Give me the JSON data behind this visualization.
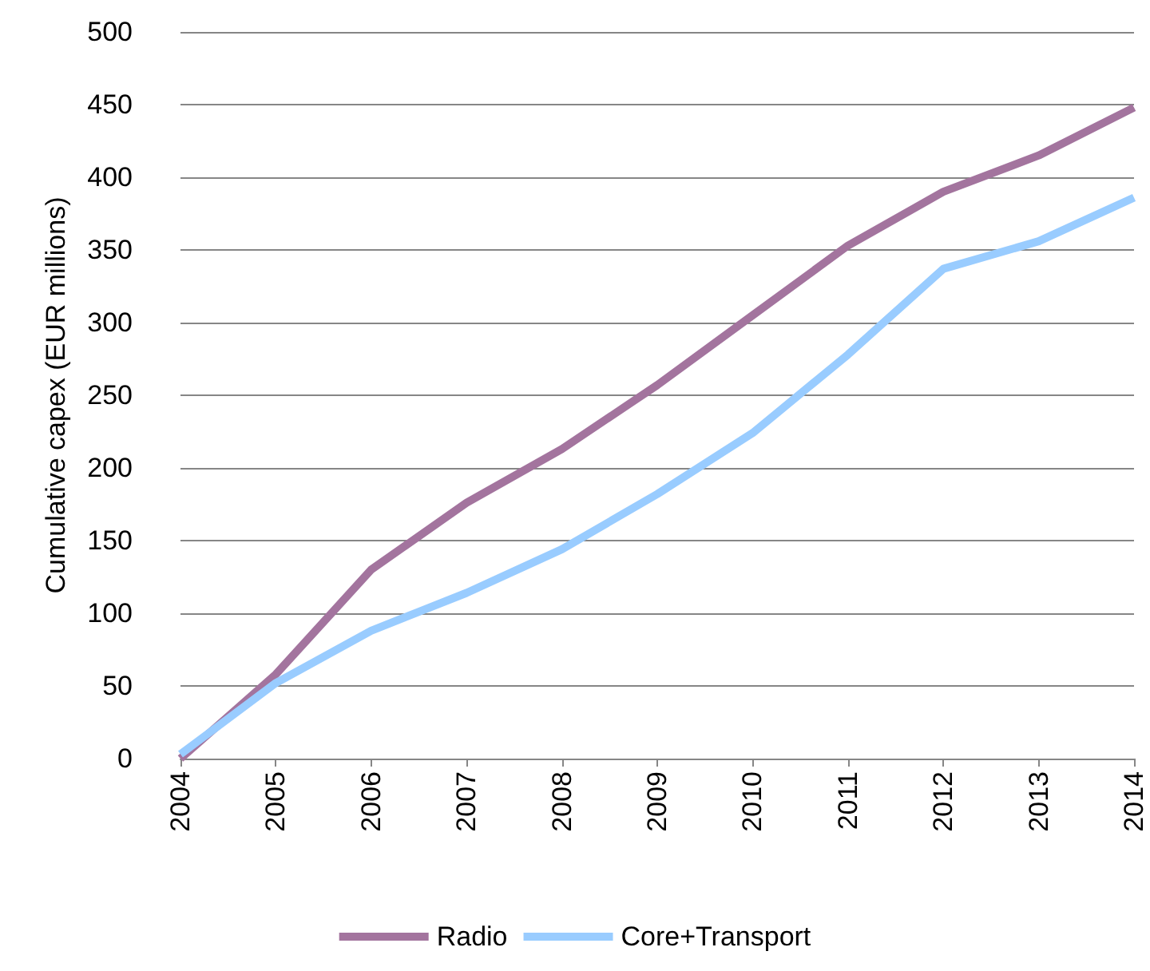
{
  "chart_data": {
    "type": "line",
    "ylabel": "Cumulative capex (EUR millions)",
    "categories": [
      "2004",
      "2005",
      "2006",
      "2007",
      "2008",
      "2009",
      "2010",
      "2011",
      "2012",
      "2013",
      "2014"
    ],
    "series": [
      {
        "name": "Radio",
        "color": "#a3749e",
        "values": [
          0,
          58,
          130,
          176,
          213,
          257,
          305,
          353,
          390,
          415,
          448
        ]
      },
      {
        "name": "Core+Transport",
        "color": "#99ccff",
        "values": [
          3,
          52,
          88,
          114,
          144,
          182,
          224,
          278,
          337,
          356,
          386
        ]
      }
    ],
    "ylim": [
      0,
      500
    ],
    "yticks": [
      0,
      50,
      100,
      150,
      200,
      250,
      300,
      350,
      400,
      450,
      500
    ],
    "grid": "y",
    "legend": "bottom",
    "marker": "none",
    "line_style": "solid"
  }
}
